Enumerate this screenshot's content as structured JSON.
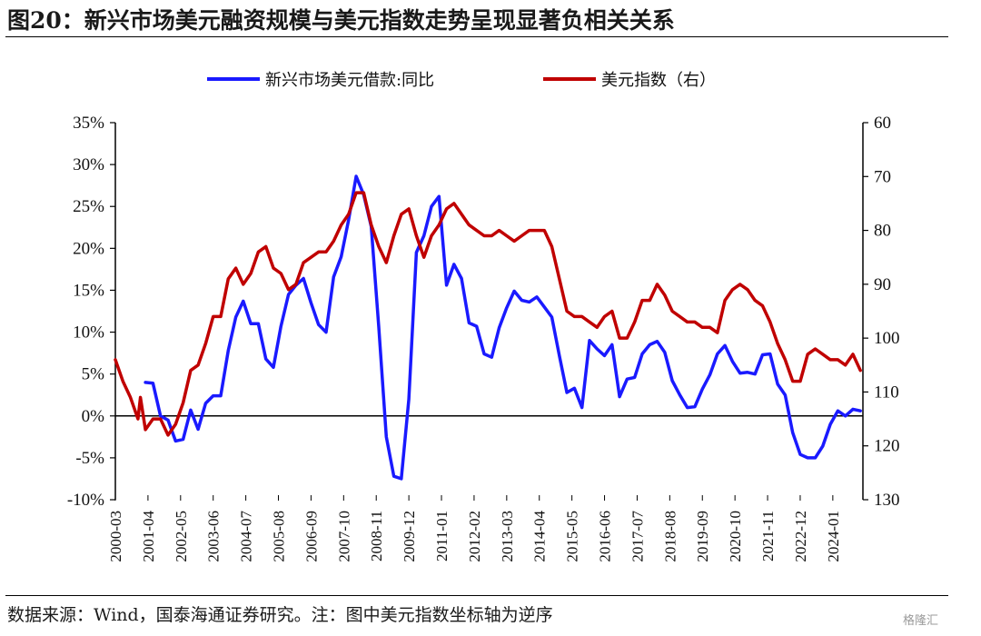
{
  "title": "图20：新兴市场美元融资规模与美元指数走势呈现显著负相关关系",
  "source": "数据来源：Wind，国泰海通证券研究。注：图中美元指数坐标轴为逆序",
  "watermark": "格隆汇",
  "chart_data": {
    "type": "line",
    "legend_position": "top",
    "grid": false,
    "x_ticks": [
      "2000-03",
      "2001-04",
      "2002-05",
      "2003-06",
      "2004-07",
      "2005-08",
      "2006-09",
      "2007-10",
      "2008-11",
      "2009-12",
      "2011-01",
      "2012-02",
      "2013-03",
      "2014-04",
      "2015-05",
      "2016-06",
      "2017-07",
      "2018-08",
      "2019-09",
      "2020-10",
      "2021-11",
      "2022-12",
      "2024-01"
    ],
    "y_left": {
      "min": -10,
      "max": 35,
      "ticks": [
        "-10%",
        "-5%",
        "0%",
        "5%",
        "10%",
        "15%",
        "20%",
        "25%",
        "30%",
        "35%"
      ]
    },
    "y_right": {
      "min": 60,
      "max": 130,
      "inverted": true,
      "ticks": [
        "60",
        "70",
        "80",
        "90",
        "100",
        "110",
        "120",
        "130"
      ]
    },
    "series": [
      {
        "name": "新兴市场美元借款:同比",
        "axis": "left",
        "color": "#1a1aff",
        "points": [
          [
            "2001-03",
            4.0
          ],
          [
            "2001-06",
            3.9
          ],
          [
            "2001-09",
            0.0
          ],
          [
            "2001-12",
            -0.5
          ],
          [
            "2002-03",
            -3.0
          ],
          [
            "2002-06",
            -2.8
          ],
          [
            "2002-09",
            0.7
          ],
          [
            "2002-12",
            -1.6
          ],
          [
            "2003-03",
            1.5
          ],
          [
            "2003-06",
            2.4
          ],
          [
            "2003-09",
            2.4
          ],
          [
            "2003-12",
            7.8
          ],
          [
            "2004-03",
            11.8
          ],
          [
            "2004-06",
            13.7
          ],
          [
            "2004-09",
            11.0
          ],
          [
            "2004-12",
            11.0
          ],
          [
            "2005-03",
            6.8
          ],
          [
            "2005-06",
            5.8
          ],
          [
            "2005-09",
            10.7
          ],
          [
            "2005-12",
            14.5
          ],
          [
            "2006-03",
            15.6
          ],
          [
            "2006-06",
            16.4
          ],
          [
            "2006-09",
            13.5
          ],
          [
            "2006-12",
            10.9
          ],
          [
            "2007-03",
            10.0
          ],
          [
            "2007-06",
            16.6
          ],
          [
            "2007-09",
            19.0
          ],
          [
            "2007-12",
            23.4
          ],
          [
            "2008-03",
            28.6
          ],
          [
            "2008-06",
            26.4
          ],
          [
            "2008-09",
            22.6
          ],
          [
            "2008-12",
            10.6
          ],
          [
            "2009-03",
            -2.5
          ],
          [
            "2009-06",
            -7.2
          ],
          [
            "2009-09",
            -7.5
          ],
          [
            "2009-12",
            2.0
          ],
          [
            "2010-03",
            19.5
          ],
          [
            "2010-06",
            21.5
          ],
          [
            "2010-09",
            25.0
          ],
          [
            "2010-12",
            26.2
          ],
          [
            "2011-03",
            15.6
          ],
          [
            "2011-06",
            18.1
          ],
          [
            "2011-09",
            16.4
          ],
          [
            "2011-12",
            11.1
          ],
          [
            "2012-03",
            10.7
          ],
          [
            "2012-06",
            7.4
          ],
          [
            "2012-09",
            7.0
          ],
          [
            "2012-12",
            10.5
          ],
          [
            "2013-03",
            12.9
          ],
          [
            "2013-06",
            14.9
          ],
          [
            "2013-09",
            13.8
          ],
          [
            "2013-12",
            13.6
          ],
          [
            "2014-03",
            14.2
          ],
          [
            "2014-06",
            13.0
          ],
          [
            "2014-09",
            11.8
          ],
          [
            "2014-12",
            7.2
          ],
          [
            "2015-03",
            2.8
          ],
          [
            "2015-06",
            3.3
          ],
          [
            "2015-09",
            1.0
          ],
          [
            "2015-12",
            9.0
          ],
          [
            "2016-03",
            8.0
          ],
          [
            "2016-06",
            7.2
          ],
          [
            "2016-09",
            8.5
          ],
          [
            "2016-12",
            2.3
          ],
          [
            "2017-03",
            4.4
          ],
          [
            "2017-06",
            4.6
          ],
          [
            "2017-09",
            7.4
          ],
          [
            "2017-12",
            8.5
          ],
          [
            "2018-03",
            8.9
          ],
          [
            "2018-06",
            7.6
          ],
          [
            "2018-09",
            4.2
          ],
          [
            "2018-12",
            2.5
          ],
          [
            "2019-03",
            1.0
          ],
          [
            "2019-06",
            1.1
          ],
          [
            "2019-09",
            3.2
          ],
          [
            "2019-12",
            4.9
          ],
          [
            "2020-03",
            7.4
          ],
          [
            "2020-06",
            8.4
          ],
          [
            "2020-09",
            6.5
          ],
          [
            "2020-12",
            5.1
          ],
          [
            "2021-03",
            5.2
          ],
          [
            "2021-06",
            5.0
          ],
          [
            "2021-09",
            7.3
          ],
          [
            "2021-12",
            7.4
          ],
          [
            "2022-03",
            3.8
          ],
          [
            "2022-06",
            2.5
          ],
          [
            "2022-09",
            -2.0
          ],
          [
            "2022-12",
            -4.6
          ],
          [
            "2023-03",
            -5.0
          ],
          [
            "2023-06",
            -5.0
          ],
          [
            "2023-09",
            -3.6
          ],
          [
            "2023-12",
            -1.0
          ],
          [
            "2024-03",
            0.6
          ],
          [
            "2024-06",
            0.0
          ],
          [
            "2024-09",
            0.8
          ],
          [
            "2024-12",
            0.6
          ]
        ]
      },
      {
        "name": "美元指数（右）",
        "axis": "right",
        "color": "#c00000",
        "points": [
          [
            "2000-03",
            104
          ],
          [
            "2000-06",
            108
          ],
          [
            "2000-09",
            111
          ],
          [
            "2000-12",
            115
          ],
          [
            "2001-01",
            111
          ],
          [
            "2001-03",
            117
          ],
          [
            "2001-06",
            115
          ],
          [
            "2001-09",
            115
          ],
          [
            "2001-12",
            118
          ],
          [
            "2002-03",
            116
          ],
          [
            "2002-06",
            112
          ],
          [
            "2002-09",
            106
          ],
          [
            "2002-12",
            105
          ],
          [
            "2003-03",
            101
          ],
          [
            "2003-06",
            96
          ],
          [
            "2003-09",
            96
          ],
          [
            "2003-12",
            89
          ],
          [
            "2004-03",
            87
          ],
          [
            "2004-06",
            90
          ],
          [
            "2004-09",
            88
          ],
          [
            "2004-12",
            84
          ],
          [
            "2005-03",
            83
          ],
          [
            "2005-06",
            87
          ],
          [
            "2005-09",
            88
          ],
          [
            "2005-12",
            91
          ],
          [
            "2006-03",
            90
          ],
          [
            "2006-06",
            86
          ],
          [
            "2006-09",
            85
          ],
          [
            "2006-12",
            84
          ],
          [
            "2007-03",
            84
          ],
          [
            "2007-06",
            82
          ],
          [
            "2007-09",
            79
          ],
          [
            "2007-12",
            77
          ],
          [
            "2008-03",
            73
          ],
          [
            "2008-06",
            73
          ],
          [
            "2008-09",
            79
          ],
          [
            "2008-12",
            83
          ],
          [
            "2009-03",
            86
          ],
          [
            "2009-06",
            81
          ],
          [
            "2009-09",
            77
          ],
          [
            "2009-12",
            76
          ],
          [
            "2010-03",
            81
          ],
          [
            "2010-06",
            85
          ],
          [
            "2010-09",
            81
          ],
          [
            "2010-12",
            79
          ],
          [
            "2011-03",
            76
          ],
          [
            "2011-06",
            75
          ],
          [
            "2011-09",
            77
          ],
          [
            "2011-12",
            79
          ],
          [
            "2012-03",
            80
          ],
          [
            "2012-06",
            81
          ],
          [
            "2012-09",
            81
          ],
          [
            "2012-12",
            80
          ],
          [
            "2013-03",
            81
          ],
          [
            "2013-06",
            82
          ],
          [
            "2013-09",
            81
          ],
          [
            "2013-12",
            80
          ],
          [
            "2014-03",
            80
          ],
          [
            "2014-06",
            80
          ],
          [
            "2014-09",
            83
          ],
          [
            "2014-12",
            89
          ],
          [
            "2015-03",
            95
          ],
          [
            "2015-06",
            96
          ],
          [
            "2015-09",
            96
          ],
          [
            "2015-12",
            97
          ],
          [
            "2016-03",
            98
          ],
          [
            "2016-06",
            96
          ],
          [
            "2016-09",
            95
          ],
          [
            "2016-12",
            100
          ],
          [
            "2017-03",
            100
          ],
          [
            "2017-06",
            97
          ],
          [
            "2017-09",
            93
          ],
          [
            "2017-12",
            93
          ],
          [
            "2018-03",
            90
          ],
          [
            "2018-06",
            92
          ],
          [
            "2018-09",
            95
          ],
          [
            "2018-12",
            96
          ],
          [
            "2019-03",
            97
          ],
          [
            "2019-06",
            97
          ],
          [
            "2019-09",
            98
          ],
          [
            "2019-12",
            98
          ],
          [
            "2020-03",
            99
          ],
          [
            "2020-06",
            93
          ],
          [
            "2020-09",
            91
          ],
          [
            "2020-12",
            90
          ],
          [
            "2021-03",
            91
          ],
          [
            "2021-06",
            93
          ],
          [
            "2021-09",
            94
          ],
          [
            "2021-12",
            97
          ],
          [
            "2022-03",
            101
          ],
          [
            "2022-06",
            104
          ],
          [
            "2022-09",
            108
          ],
          [
            "2022-12",
            108
          ],
          [
            "2023-03",
            103
          ],
          [
            "2023-06",
            102
          ],
          [
            "2023-09",
            103
          ],
          [
            "2023-12",
            104
          ],
          [
            "2024-03",
            104
          ],
          [
            "2024-06",
            105
          ],
          [
            "2024-09",
            103
          ],
          [
            "2024-12",
            106
          ]
        ]
      }
    ]
  }
}
